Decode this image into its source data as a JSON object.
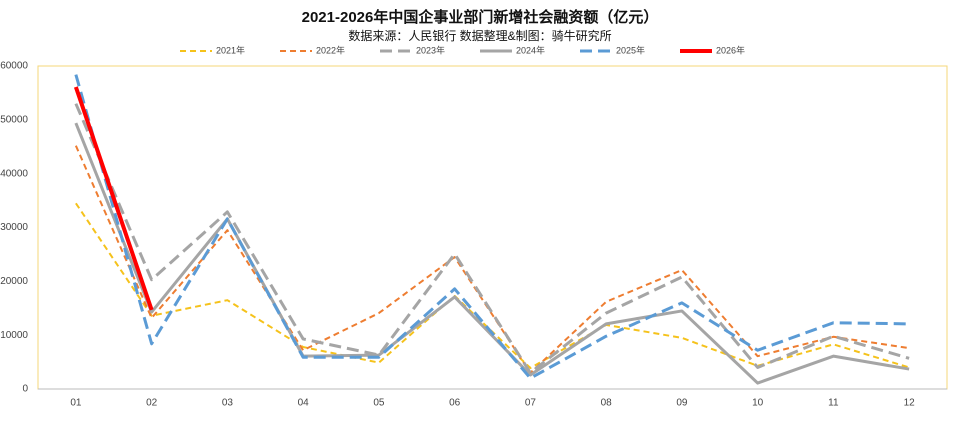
{
  "chart_data": {
    "type": "line",
    "title": "2021-2026年中国企事业部门新增社会融资额（亿元）",
    "subtitle": "数据来源：人民银行 数据整理&制图：骑牛研究所",
    "categories": [
      "01",
      "02",
      "03",
      "04",
      "05",
      "06",
      "07",
      "08",
      "09",
      "10",
      "11",
      "12"
    ],
    "series": [
      {
        "name": "2021年",
        "color": "#f5c21b",
        "dash": "6,4",
        "width": 2,
        "values": [
          34500,
          13600,
          16500,
          7800,
          4900,
          17300,
          3900,
          11900,
          9500,
          4300,
          8300,
          4000
        ]
      },
      {
        "name": "2022年",
        "color": "#ee7d31",
        "dash": "6,4",
        "width": 2,
        "values": [
          45200,
          13200,
          29500,
          7200,
          14100,
          24500,
          3000,
          16200,
          22100,
          6100,
          9700,
          7600
        ]
      },
      {
        "name": "2023年",
        "color": "#a5a5a5",
        "dash": "12,6",
        "width": 3,
        "values": [
          53000,
          20300,
          32900,
          9300,
          6300,
          25100,
          3000,
          14100,
          20800,
          4000,
          9800,
          5700
        ]
      },
      {
        "name": "2024年",
        "color": "#a5a5a5",
        "dash": "",
        "width": 3,
        "values": [
          49400,
          14300,
          31600,
          6100,
          6300,
          17100,
          2600,
          12100,
          14500,
          1100,
          6100,
          3700
        ]
      },
      {
        "name": "2025年",
        "color": "#5b9bd5",
        "dash": "12,6",
        "width": 3,
        "values": [
          58400,
          8400,
          31600,
          5900,
          5900,
          18600,
          2000,
          9800,
          16000,
          7200,
          12300,
          12100
        ]
      },
      {
        "name": "2026年",
        "color": "#ff0000",
        "dash": "",
        "width": 4,
        "values": [
          56100,
          14700,
          null,
          null,
          null,
          null,
          null,
          null,
          null,
          null,
          null,
          null
        ]
      }
    ],
    "ylim": [
      0,
      60000
    ],
    "yticks": [
      0,
      10000,
      20000,
      30000,
      40000,
      50000,
      60000
    ],
    "grid": false,
    "legend": "top"
  }
}
